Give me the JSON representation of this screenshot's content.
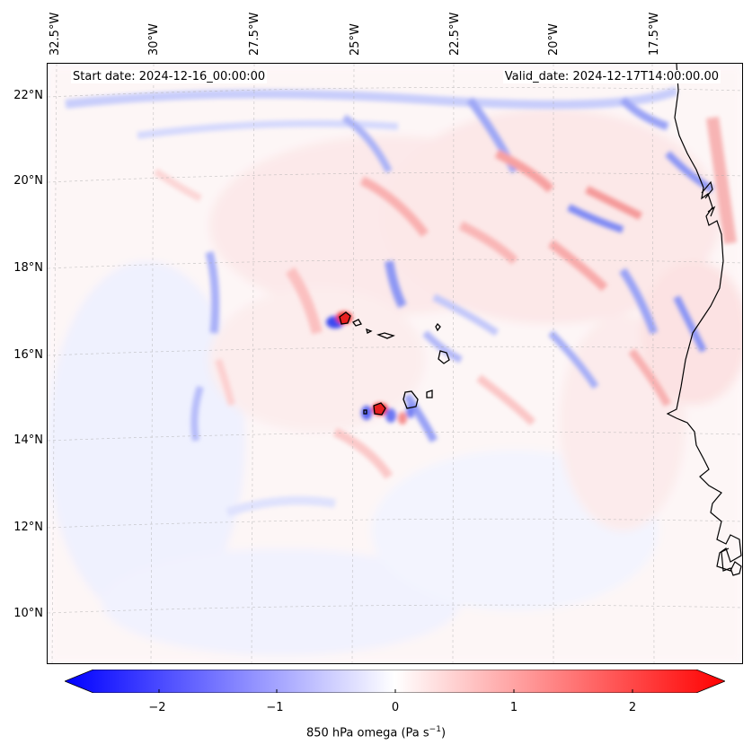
{
  "map": {
    "start_label": "Start date: 2024-12-16_00:00:00",
    "valid_label": "Valid_date: 2024-12-17T14:00:00.00",
    "lon_labels": [
      "32.5°W",
      "30°W",
      "27.5°W",
      "25°W",
      "22.5°W",
      "20°W",
      "17.5°W"
    ],
    "lat_labels": [
      "22°N",
      "20°N",
      "18°N",
      "16°N",
      "14°N",
      "12°N",
      "10°N"
    ],
    "field": "850 hPa omega",
    "colormap": "bwr",
    "colors": {
      "neg": "#0000ff",
      "zero": "#ffffff",
      "pos": "#ff0000",
      "coast": "#000000"
    }
  },
  "colorbar": {
    "ticks": [
      "−2",
      "−1",
      "0",
      "1",
      "2"
    ],
    "range": [
      -2.7,
      2.7
    ],
    "label": "850 hPa omega (Pa s",
    "label_exp": "−1",
    "label_end": ")"
  }
}
